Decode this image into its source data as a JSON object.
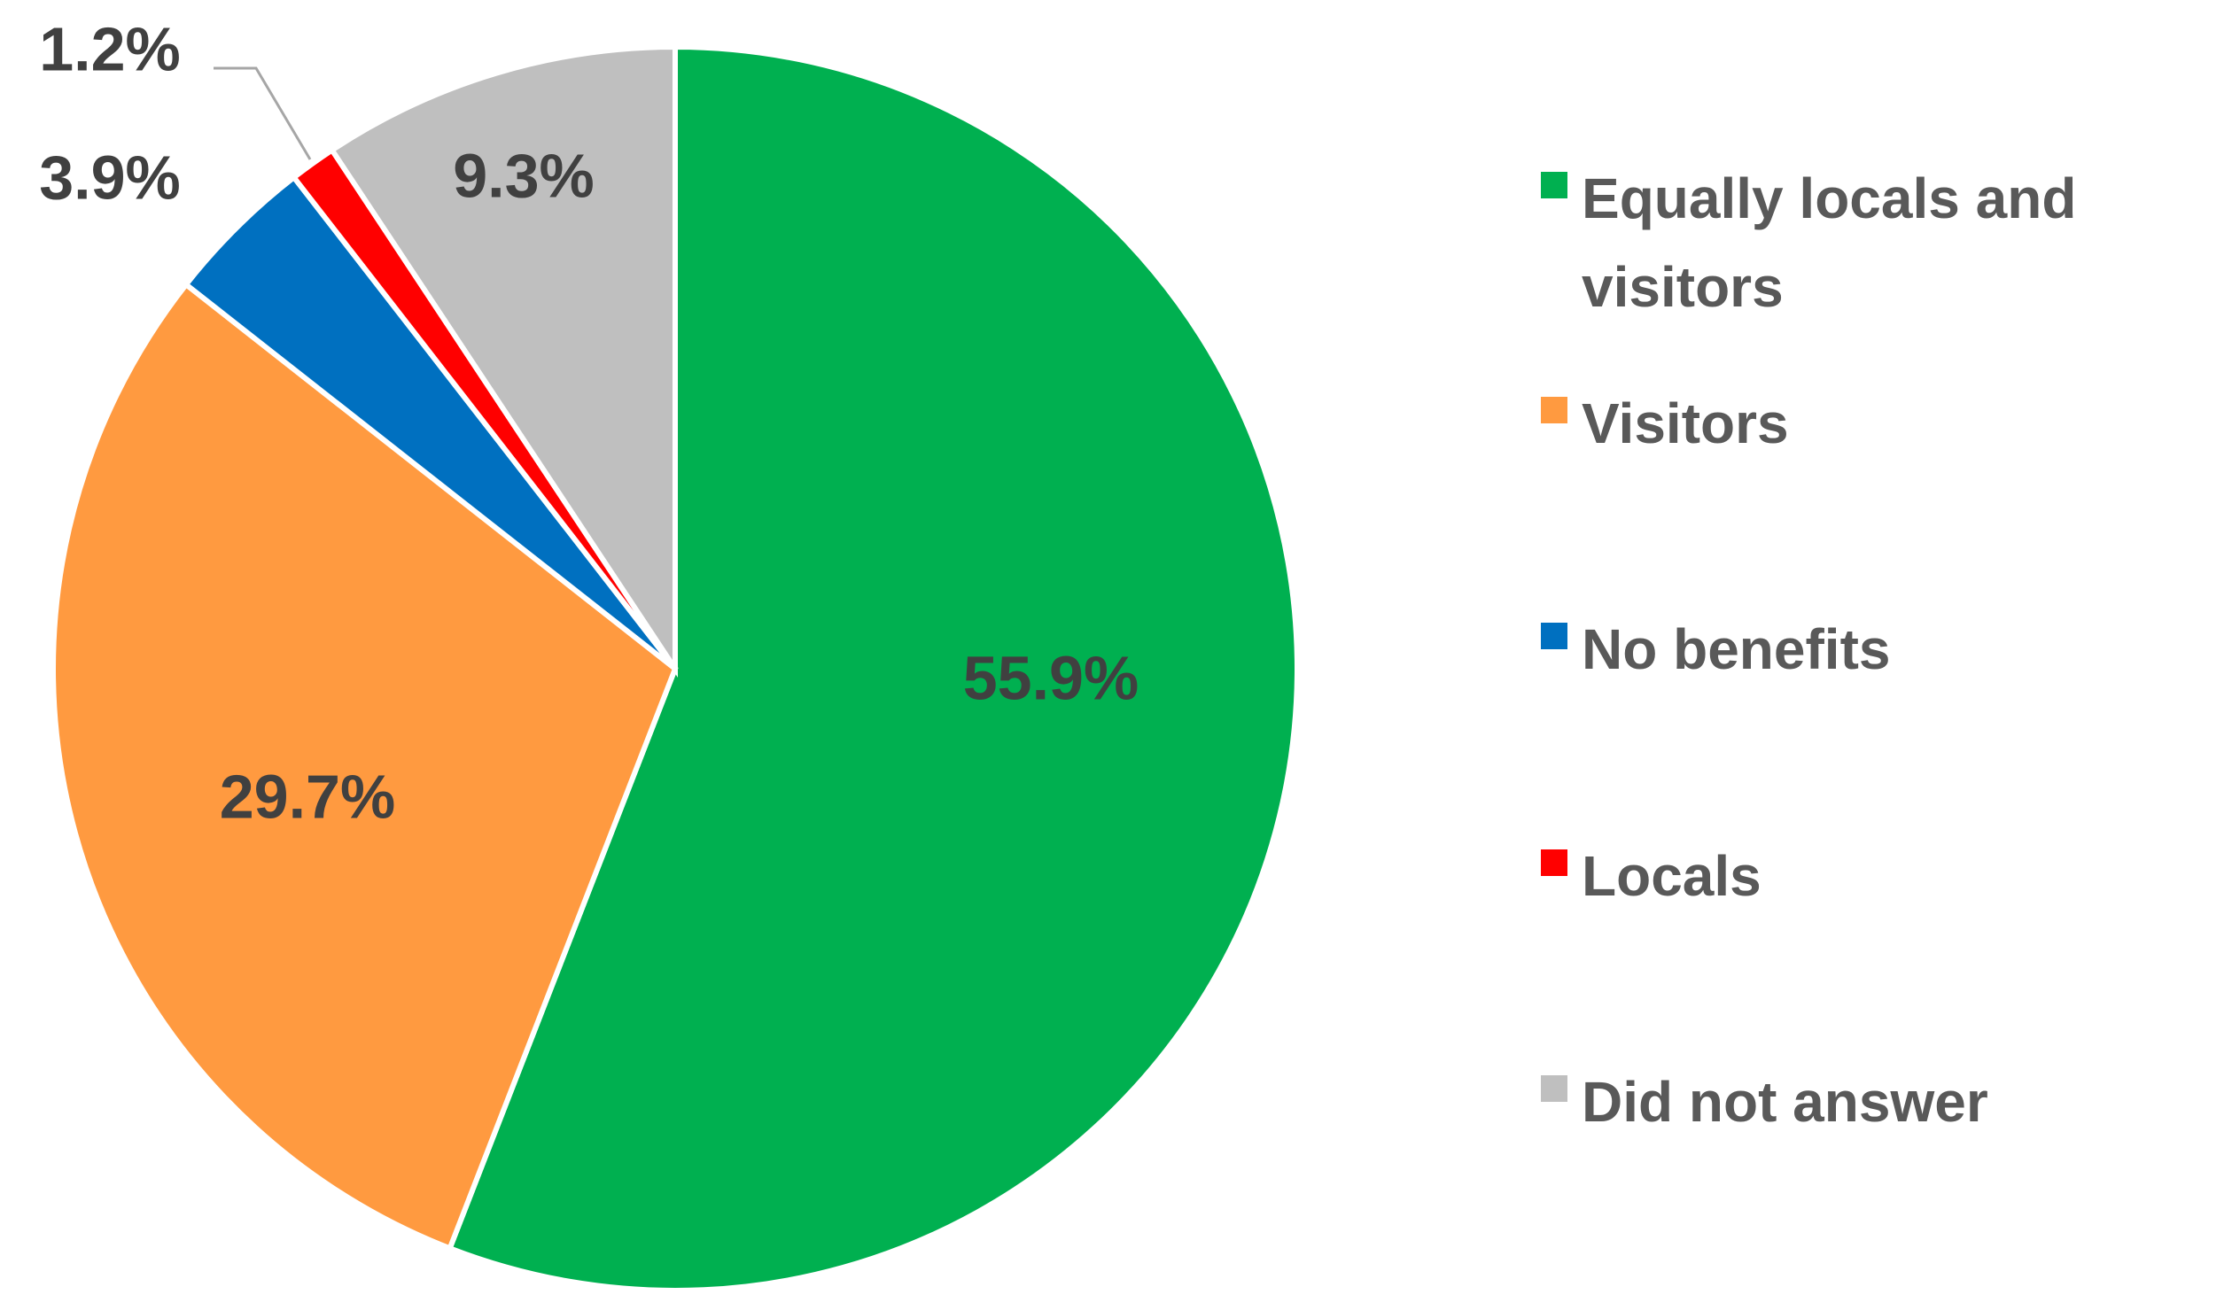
{
  "chart_data": {
    "type": "pie",
    "categories": [
      "Equally locals and visitors",
      "Visitors",
      "No benefits",
      "Locals",
      "Did not answer"
    ],
    "values": [
      55.9,
      29.7,
      3.9,
      1.2,
      9.3
    ],
    "value_labels": [
      "55.9%",
      "29.7%",
      "3.9%",
      "1.2%",
      "9.3%"
    ],
    "colors": [
      "#00b050",
      "#ff9a40",
      "#0070c0",
      "#ff0000",
      "#bfbfbf"
    ],
    "legend": "right"
  }
}
